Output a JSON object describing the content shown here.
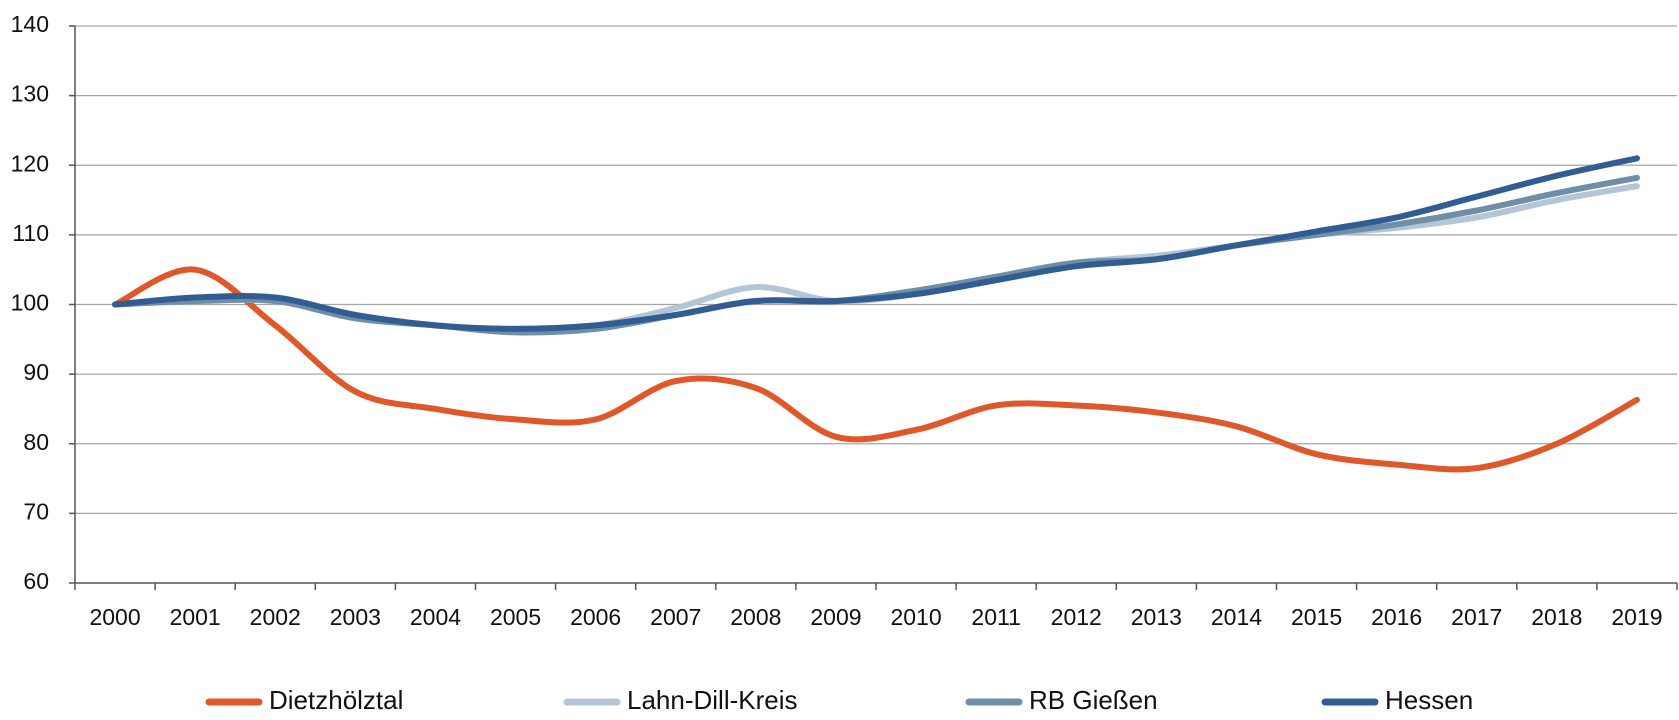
{
  "chart_data": {
    "type": "line",
    "categories": [
      "2000",
      "2001",
      "2002",
      "2003",
      "2004",
      "2005",
      "2006",
      "2007",
      "2008",
      "2009",
      "2010",
      "2011",
      "2012",
      "2013",
      "2014",
      "2015",
      "2016",
      "2017",
      "2018",
      "2019"
    ],
    "series": [
      {
        "name": "Dietzhölztal",
        "color": "#e0572a",
        "values": [
          100,
          105,
          97,
          87.5,
          85,
          83.5,
          83.5,
          89,
          88,
          81,
          82,
          85.5,
          85.5,
          84.5,
          82.5,
          78.5,
          77,
          76.5,
          80,
          86.3
        ]
      },
      {
        "name": "Lahn-Dill-Kreis",
        "color": "#b4c6d6",
        "values": [
          100,
          100.5,
          100.5,
          98.5,
          97,
          96.5,
          97,
          99.5,
          102.5,
          100.5,
          101.5,
          103.5,
          106,
          107,
          108.5,
          110,
          111,
          112.5,
          115,
          117
        ]
      },
      {
        "name": "RB Gießen",
        "color": "#6f8ea8",
        "values": [
          100,
          100.5,
          100.5,
          98,
          97,
          96,
          96.5,
          98.5,
          100.5,
          100.5,
          102,
          104,
          106,
          106.5,
          108.5,
          110,
          111.5,
          113.5,
          116,
          118.2
        ]
      },
      {
        "name": "Hessen",
        "color": "#325d92",
        "values": [
          100,
          101,
          101,
          98.5,
          97,
          96.5,
          97,
          98.5,
          100.5,
          100.5,
          101.5,
          103.5,
          105.5,
          106.5,
          108.5,
          110.5,
          112.5,
          115.5,
          118.5,
          121
        ]
      }
    ],
    "ylim": [
      60,
      140
    ],
    "yticks": [
      60,
      70,
      80,
      90,
      100,
      110,
      120,
      130,
      140
    ],
    "grid": true,
    "legend": "bottom"
  }
}
